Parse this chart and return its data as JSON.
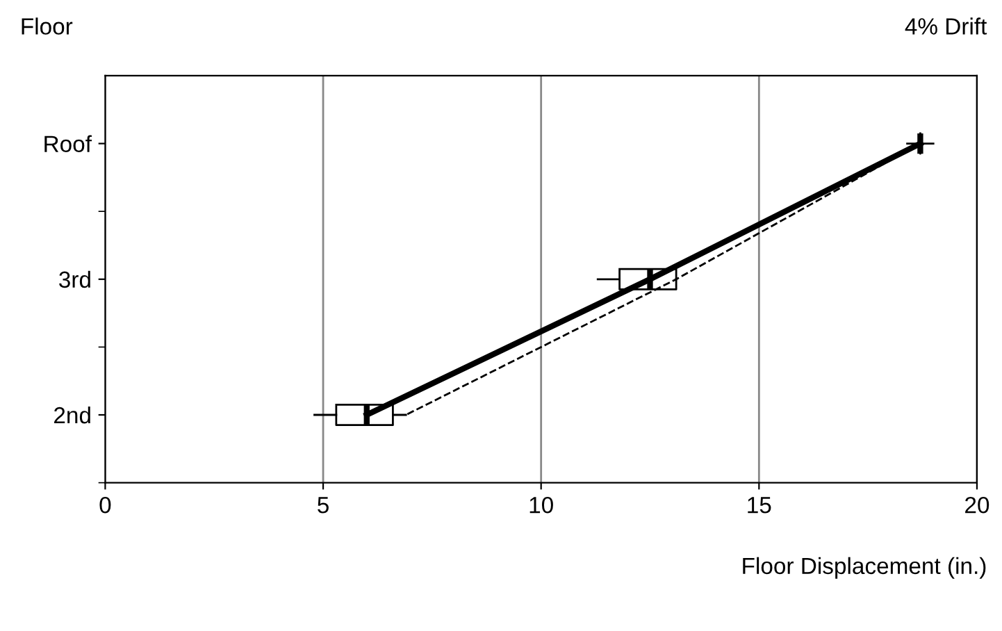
{
  "chart_data": {
    "type": "box",
    "orientation": "horizontal",
    "title": "4% Drift",
    "ylabel": "Floor",
    "xlabel": "Floor Displacement (in.)",
    "xlim": [
      0,
      20
    ],
    "xticks": [
      0,
      5,
      10,
      15,
      20
    ],
    "categories": [
      "Roof",
      "3rd",
      "2nd"
    ],
    "grid": "x",
    "boxes": [
      {
        "low": 18.4,
        "q1": 18.7,
        "median": 18.7,
        "q3": 18.7,
        "high": 19.0
      },
      {
        "low": 11.3,
        "q1": 11.8,
        "median": 12.5,
        "q3": 13.1,
        "high": 13.1
      },
      {
        "low": 4.8,
        "q1": 5.3,
        "median": 6.0,
        "q3": 6.6,
        "high": 6.9
      }
    ],
    "series": [
      {
        "type": "line",
        "color": "#000000",
        "values": [
          18.7,
          12.5,
          6.0
        ],
        "line_style": "solid"
      },
      {
        "type": "line",
        "color": "#000000",
        "values": [
          18.7,
          13.1,
          6.9
        ],
        "line_style": "dashed"
      }
    ]
  }
}
